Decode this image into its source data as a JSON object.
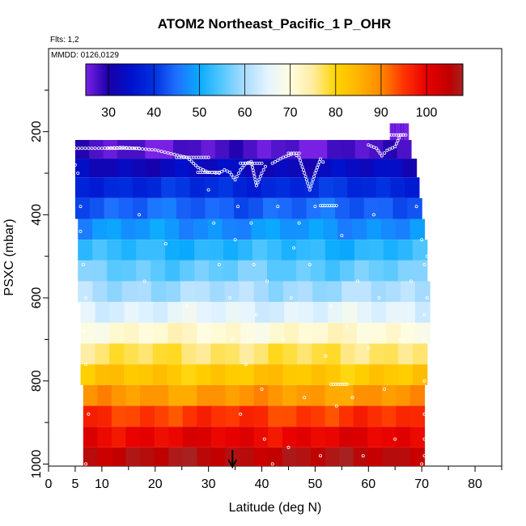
{
  "chart_data": {
    "type": "heatmap",
    "title": "ATOM2 Northeast_Pacific_1 P_OHR",
    "flights_label": "Flts: 1,2",
    "dates_label": "MMDD: 0126,0129",
    "xlabel": "Latitude (deg N)",
    "ylabel": "PSXC (mbar)",
    "xlim": [
      0,
      85
    ],
    "ylim": [
      1005,
      0
    ],
    "y_axis": "reversed",
    "xticks": [
      0,
      5,
      10,
      20,
      30,
      40,
      50,
      60,
      70,
      80
    ],
    "yticks": [
      200,
      400,
      600,
      800,
      1000
    ],
    "colorbar": {
      "min": 25,
      "max": 108,
      "ticks": [
        30,
        40,
        50,
        60,
        70,
        80,
        90,
        100
      ],
      "stops": [
        {
          "v": 25,
          "c": "#7a22e6"
        },
        {
          "v": 30,
          "c": "#1a00a8"
        },
        {
          "v": 35,
          "c": "#0010cc"
        },
        {
          "v": 40,
          "c": "#0030e0"
        },
        {
          "v": 45,
          "c": "#1e70ff"
        },
        {
          "v": 50,
          "c": "#0aaaff"
        },
        {
          "v": 55,
          "c": "#55c8ff"
        },
        {
          "v": 60,
          "c": "#aadcff"
        },
        {
          "v": 65,
          "c": "#e4f4ff"
        },
        {
          "v": 70,
          "c": "#fffde0"
        },
        {
          "v": 75,
          "c": "#ffeca0"
        },
        {
          "v": 80,
          "c": "#ffd400"
        },
        {
          "v": 85,
          "c": "#ffb400"
        },
        {
          "v": 90,
          "c": "#ff8800"
        },
        {
          "v": 95,
          "c": "#ff3300"
        },
        {
          "v": 100,
          "c": "#e80000"
        },
        {
          "v": 105,
          "c": "#c00000"
        },
        {
          "v": 108,
          "c": "#a82020"
        }
      ]
    },
    "pressure_bands": [
      {
        "p_top": 220,
        "p_bot": 265,
        "lat_min": 5,
        "lat_max": 68,
        "value": 27
      },
      {
        "p_top": 265,
        "p_bot": 310,
        "lat_min": 5,
        "lat_max": 69,
        "value": 33
      },
      {
        "p_top": 310,
        "p_bot": 360,
        "lat_min": 5,
        "lat_max": 69.5,
        "value": 39
      },
      {
        "p_top": 360,
        "p_bot": 410,
        "lat_min": 5,
        "lat_max": 70,
        "value": 44
      },
      {
        "p_top": 410,
        "p_bot": 460,
        "lat_min": 5.5,
        "lat_max": 70.5,
        "value": 48
      },
      {
        "p_top": 460,
        "p_bot": 510,
        "lat_min": 5.5,
        "lat_max": 71,
        "value": 52
      },
      {
        "p_top": 510,
        "p_bot": 560,
        "lat_min": 5.5,
        "lat_max": 71,
        "value": 56
      },
      {
        "p_top": 560,
        "p_bot": 610,
        "lat_min": 5.5,
        "lat_max": 71.5,
        "value": 60
      },
      {
        "p_top": 610,
        "p_bot": 660,
        "lat_min": 6,
        "lat_max": 71.5,
        "value": 65
      },
      {
        "p_top": 660,
        "p_bot": 710,
        "lat_min": 6,
        "lat_max": 71.5,
        "value": 71
      },
      {
        "p_top": 710,
        "p_bot": 760,
        "lat_min": 6,
        "lat_max": 71,
        "value": 77
      },
      {
        "p_top": 760,
        "p_bot": 810,
        "lat_min": 6,
        "lat_max": 71,
        "value": 82
      },
      {
        "p_top": 810,
        "p_bot": 860,
        "lat_min": 6.5,
        "lat_max": 70.5,
        "value": 88
      },
      {
        "p_top": 860,
        "p_bot": 910,
        "lat_min": 6.5,
        "lat_max": 70.5,
        "value": 95
      },
      {
        "p_top": 910,
        "p_bot": 960,
        "lat_min": 6.5,
        "lat_max": 70.5,
        "value": 100
      },
      {
        "p_top": 960,
        "p_bot": 1005,
        "lat_min": 6.5,
        "lat_max": 70.5,
        "value": 106
      },
      {
        "p_top": 180,
        "p_bot": 220,
        "lat_min": 64,
        "lat_max": 67.5,
        "value": 25
      }
    ],
    "flight_track": {
      "segments": [
        [
          [
            5,
            240
          ],
          [
            10,
            240
          ],
          [
            14,
            238
          ],
          [
            20,
            244
          ],
          [
            26,
            262
          ],
          [
            28,
            286
          ],
          [
            30,
            298
          ],
          [
            32,
            300
          ],
          [
            33,
            292
          ],
          [
            34,
            298
          ],
          [
            35,
            316
          ],
          [
            36,
            292
          ],
          [
            37,
            276
          ],
          [
            38,
            272
          ],
          [
            38.5,
            300
          ],
          [
            39,
            330
          ],
          [
            40,
            300
          ],
          [
            41,
            276
          ]
        ],
        [
          [
            42,
            276
          ],
          [
            44,
            262
          ],
          [
            46,
            252
          ],
          [
            47,
            262
          ],
          [
            48,
            300
          ],
          [
            49,
            340
          ],
          [
            50,
            300
          ],
          [
            51,
            266
          ],
          [
            52,
            280
          ]
        ],
        [
          [
            60,
            232
          ],
          [
            61.5,
            240
          ],
          [
            62.5,
            258
          ],
          [
            63.5,
            245
          ],
          [
            65,
            236
          ],
          [
            66,
            208
          ],
          [
            67,
            208
          ]
        ]
      ],
      "scatter_points": [
        [
          5,
          280
        ],
        [
          5.5,
          300
        ],
        [
          6,
          380
        ],
        [
          6,
          440
        ],
        [
          6.5,
          520
        ],
        [
          7,
          600
        ],
        [
          6.5,
          680
        ],
        [
          7,
          760
        ],
        [
          7.5,
          880
        ],
        [
          7,
          1000
        ],
        [
          17,
          400
        ],
        [
          18,
          560
        ],
        [
          22,
          470
        ],
        [
          26,
          620
        ],
        [
          30,
          340
        ],
        [
          31,
          420
        ],
        [
          32,
          520
        ],
        [
          34,
          600
        ],
        [
          34.5,
          700
        ],
        [
          35,
          460
        ],
        [
          35.5,
          380
        ],
        [
          36,
          880
        ],
        [
          37,
          760
        ],
        [
          38,
          420
        ],
        [
          38.5,
          520
        ],
        [
          39,
          640
        ],
        [
          40,
          820
        ],
        [
          40.5,
          940
        ],
        [
          41,
          560
        ],
        [
          42,
          1000
        ],
        [
          43,
          380
        ],
        [
          44,
          700
        ],
        [
          45,
          960
        ],
        [
          45.5,
          600
        ],
        [
          46,
          480
        ],
        [
          47,
          420
        ],
        [
          48,
          840
        ],
        [
          49,
          520
        ],
        [
          50,
          380
        ],
        [
          51,
          980
        ],
        [
          52,
          740
        ],
        [
          53,
          620
        ],
        [
          54,
          860
        ],
        [
          55,
          450
        ],
        [
          56,
          670
        ],
        [
          57,
          840
        ],
        [
          58,
          560
        ],
        [
          59,
          980
        ],
        [
          60,
          720
        ],
        [
          61,
          400
        ],
        [
          62,
          600
        ],
        [
          63,
          820
        ],
        [
          65,
          940
        ],
        [
          66,
          700
        ],
        [
          68,
          560
        ],
        [
          69,
          380
        ],
        [
          70,
          460
        ],
        [
          70.5,
          520
        ],
        [
          70.5,
          640
        ],
        [
          70.5,
          700
        ],
        [
          70.5,
          800
        ],
        [
          70.5,
          880
        ],
        [
          70.5,
          940
        ],
        [
          70.5,
          980
        ],
        [
          71,
          500
        ],
        [
          71,
          600
        ],
        [
          71.5,
          760
        ],
        [
          70,
          1000
        ]
      ],
      "horizontal_runs": [
        [
          11,
          17,
          240
        ],
        [
          24,
          30,
          262
        ],
        [
          28,
          32,
          298
        ],
        [
          36,
          40,
          276
        ],
        [
          53,
          56,
          808
        ],
        [
          51,
          54,
          378
        ],
        [
          63,
          67,
          208
        ],
        [
          45,
          47,
          252
        ]
      ]
    },
    "arrow_at_lat": 34.5
  }
}
